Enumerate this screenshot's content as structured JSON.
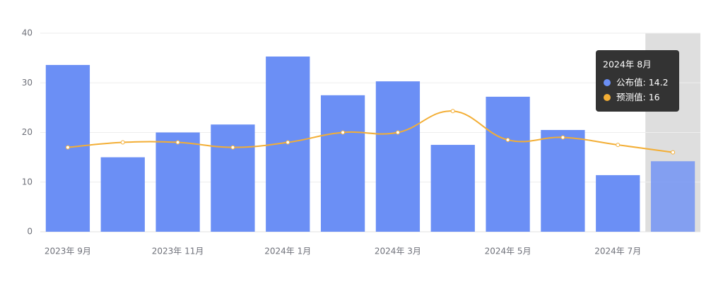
{
  "chart_data": {
    "type": "bar_line",
    "categories": [
      "2023年 9月",
      null,
      "2023年 11月",
      null,
      "2024年 1月",
      null,
      "2024年 3月",
      null,
      "2024年 5月",
      null,
      "2024年 7月",
      null
    ],
    "series": [
      {
        "name": "公布值",
        "type": "bar",
        "color": "#6b8ff5",
        "values": [
          33.6,
          15,
          20,
          21.6,
          35.3,
          27.5,
          30.3,
          17.5,
          27.2,
          20.5,
          11.4,
          14.2
        ]
      },
      {
        "name": "预测值",
        "type": "line",
        "color": "#f3ae35",
        "values": [
          17,
          18,
          18,
          17,
          18,
          20,
          20,
          24.3,
          18.5,
          19,
          17.5,
          16
        ]
      }
    ],
    "ylim": [
      0,
      40
    ],
    "yticks": [
      0,
      10,
      20,
      30,
      40
    ],
    "grid": true,
    "highlight_index": 11,
    "tooltip": {
      "title": "2024年 8月",
      "separator": ":"
    }
  }
}
